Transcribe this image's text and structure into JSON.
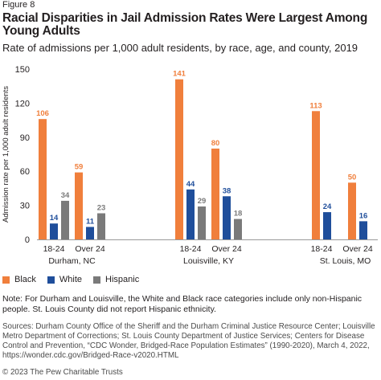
{
  "figure_label": "Figure 8",
  "title": "Racial Disparities in Jail Admission Rates Were Largest Among Young Adults",
  "subtitle": "Rate of admissions per 1,000 adult residents, by race, age, and county, 2019",
  "colors": {
    "Black": "#f07f3c",
    "White": "#1f4e9b",
    "Hispanic": "#7a7a7a"
  },
  "chart_data": {
    "type": "bar",
    "ylabel": "Admission rate per 1,000 adult residents",
    "ylim": [
      0,
      150
    ],
    "yticks": [
      "0",
      "30",
      "60",
      "90",
      "120",
      "150"
    ],
    "grid": false,
    "legend_position": "bottom-left",
    "groups": [
      {
        "county": "Durham, NC",
        "bars": [
          {
            "age": "18-24",
            "values": {
              "Black": 106,
              "White": 14,
              "Hispanic": 34
            }
          },
          {
            "age": "Over 24",
            "values": {
              "Black": 59,
              "White": 11,
              "Hispanic": 23
            }
          }
        ]
      },
      {
        "county": "Louisville, KY",
        "bars": [
          {
            "age": "18-24",
            "values": {
              "Black": 141,
              "White": 44,
              "Hispanic": 29
            }
          },
          {
            "age": "Over 24",
            "values": {
              "Black": 80,
              "White": 38,
              "Hispanic": 18
            }
          }
        ]
      },
      {
        "county": "St. Louis, MO",
        "bars": [
          {
            "age": "18-24",
            "values": {
              "Black": 113,
              "White": 24
            }
          },
          {
            "age": "Over 24",
            "values": {
              "Black": 50,
              "White": 16
            }
          }
        ]
      }
    ],
    "series": [
      "Black",
      "White",
      "Hispanic"
    ]
  },
  "legend": [
    {
      "label": "Black",
      "color": "#f07f3c"
    },
    {
      "label": "White",
      "color": "#1f4e9b"
    },
    {
      "label": "Hispanic",
      "color": "#7a7a7a"
    }
  ],
  "note": "Note: For Durham and Louisville, the White and Black race categories include only non-Hispanic people. St. Louis County did not report Hispanic ethnicity.",
  "sources": "Sources: Durham County Office of the Sheriff and the Durham Criminal Justice Resource Center; Louisville Metro Department of Corrections; St. Louis County Department of Justice Services; Centers for Disease Control and Prevention, “CDC Wonder, Bridged-Race Population Estimates” (1990-2020), March 4, 2022, https://wonder.cdc.gov/Bridged-Race-v2020.HTML",
  "copyright": "© 2023 The Pew Charitable Trusts"
}
